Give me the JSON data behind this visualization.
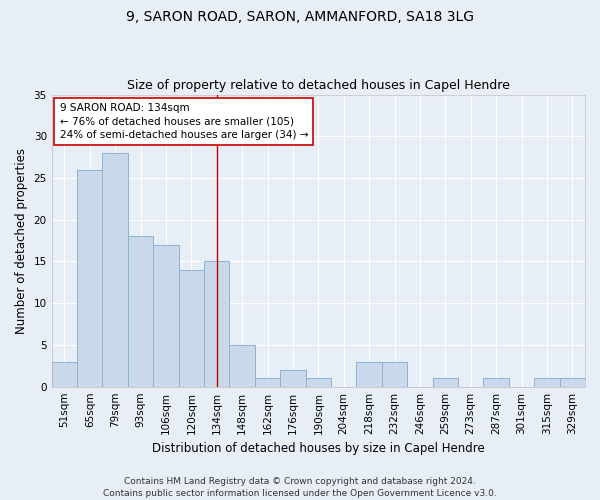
{
  "title": "9, SARON ROAD, SARON, AMMANFORD, SA18 3LG",
  "subtitle": "Size of property relative to detached houses in Capel Hendre",
  "xlabel": "Distribution of detached houses by size in Capel Hendre",
  "ylabel": "Number of detached properties",
  "categories": [
    "51sqm",
    "65sqm",
    "79sqm",
    "93sqm",
    "106sqm",
    "120sqm",
    "134sqm",
    "148sqm",
    "162sqm",
    "176sqm",
    "190sqm",
    "204sqm",
    "218sqm",
    "232sqm",
    "246sqm",
    "259sqm",
    "273sqm",
    "287sqm",
    "301sqm",
    "315sqm",
    "329sqm"
  ],
  "values": [
    3,
    26,
    28,
    18,
    17,
    14,
    15,
    5,
    1,
    2,
    1,
    0,
    3,
    3,
    0,
    1,
    0,
    1,
    0,
    1,
    1
  ],
  "bar_color": "#c9d9eb",
  "bar_edge_color": "#8ab4d4",
  "highlight_index": 6,
  "highlight_line_color": "#cc0000",
  "ylim": [
    0,
    35
  ],
  "yticks": [
    0,
    5,
    10,
    15,
    20,
    25,
    30,
    35
  ],
  "annotation_line1": "9 SARON ROAD: 134sqm",
  "annotation_line2": "← 76% of detached houses are smaller (105)",
  "annotation_line3": "24% of semi-detached houses are larger (34) →",
  "annotation_box_color": "#ffffff",
  "annotation_box_edge": "#cc0000",
  "footer_line1": "Contains HM Land Registry data © Crown copyright and database right 2024.",
  "footer_line2": "Contains public sector information licensed under the Open Government Licence v3.0.",
  "background_color": "#e8eef5",
  "plot_bg_color": "#e8eef5",
  "grid_color": "#ffffff",
  "title_fontsize": 10,
  "subtitle_fontsize": 9,
  "axis_label_fontsize": 8.5,
  "tick_fontsize": 7.5,
  "annotation_fontsize": 7.5,
  "footer_fontsize": 6.5
}
